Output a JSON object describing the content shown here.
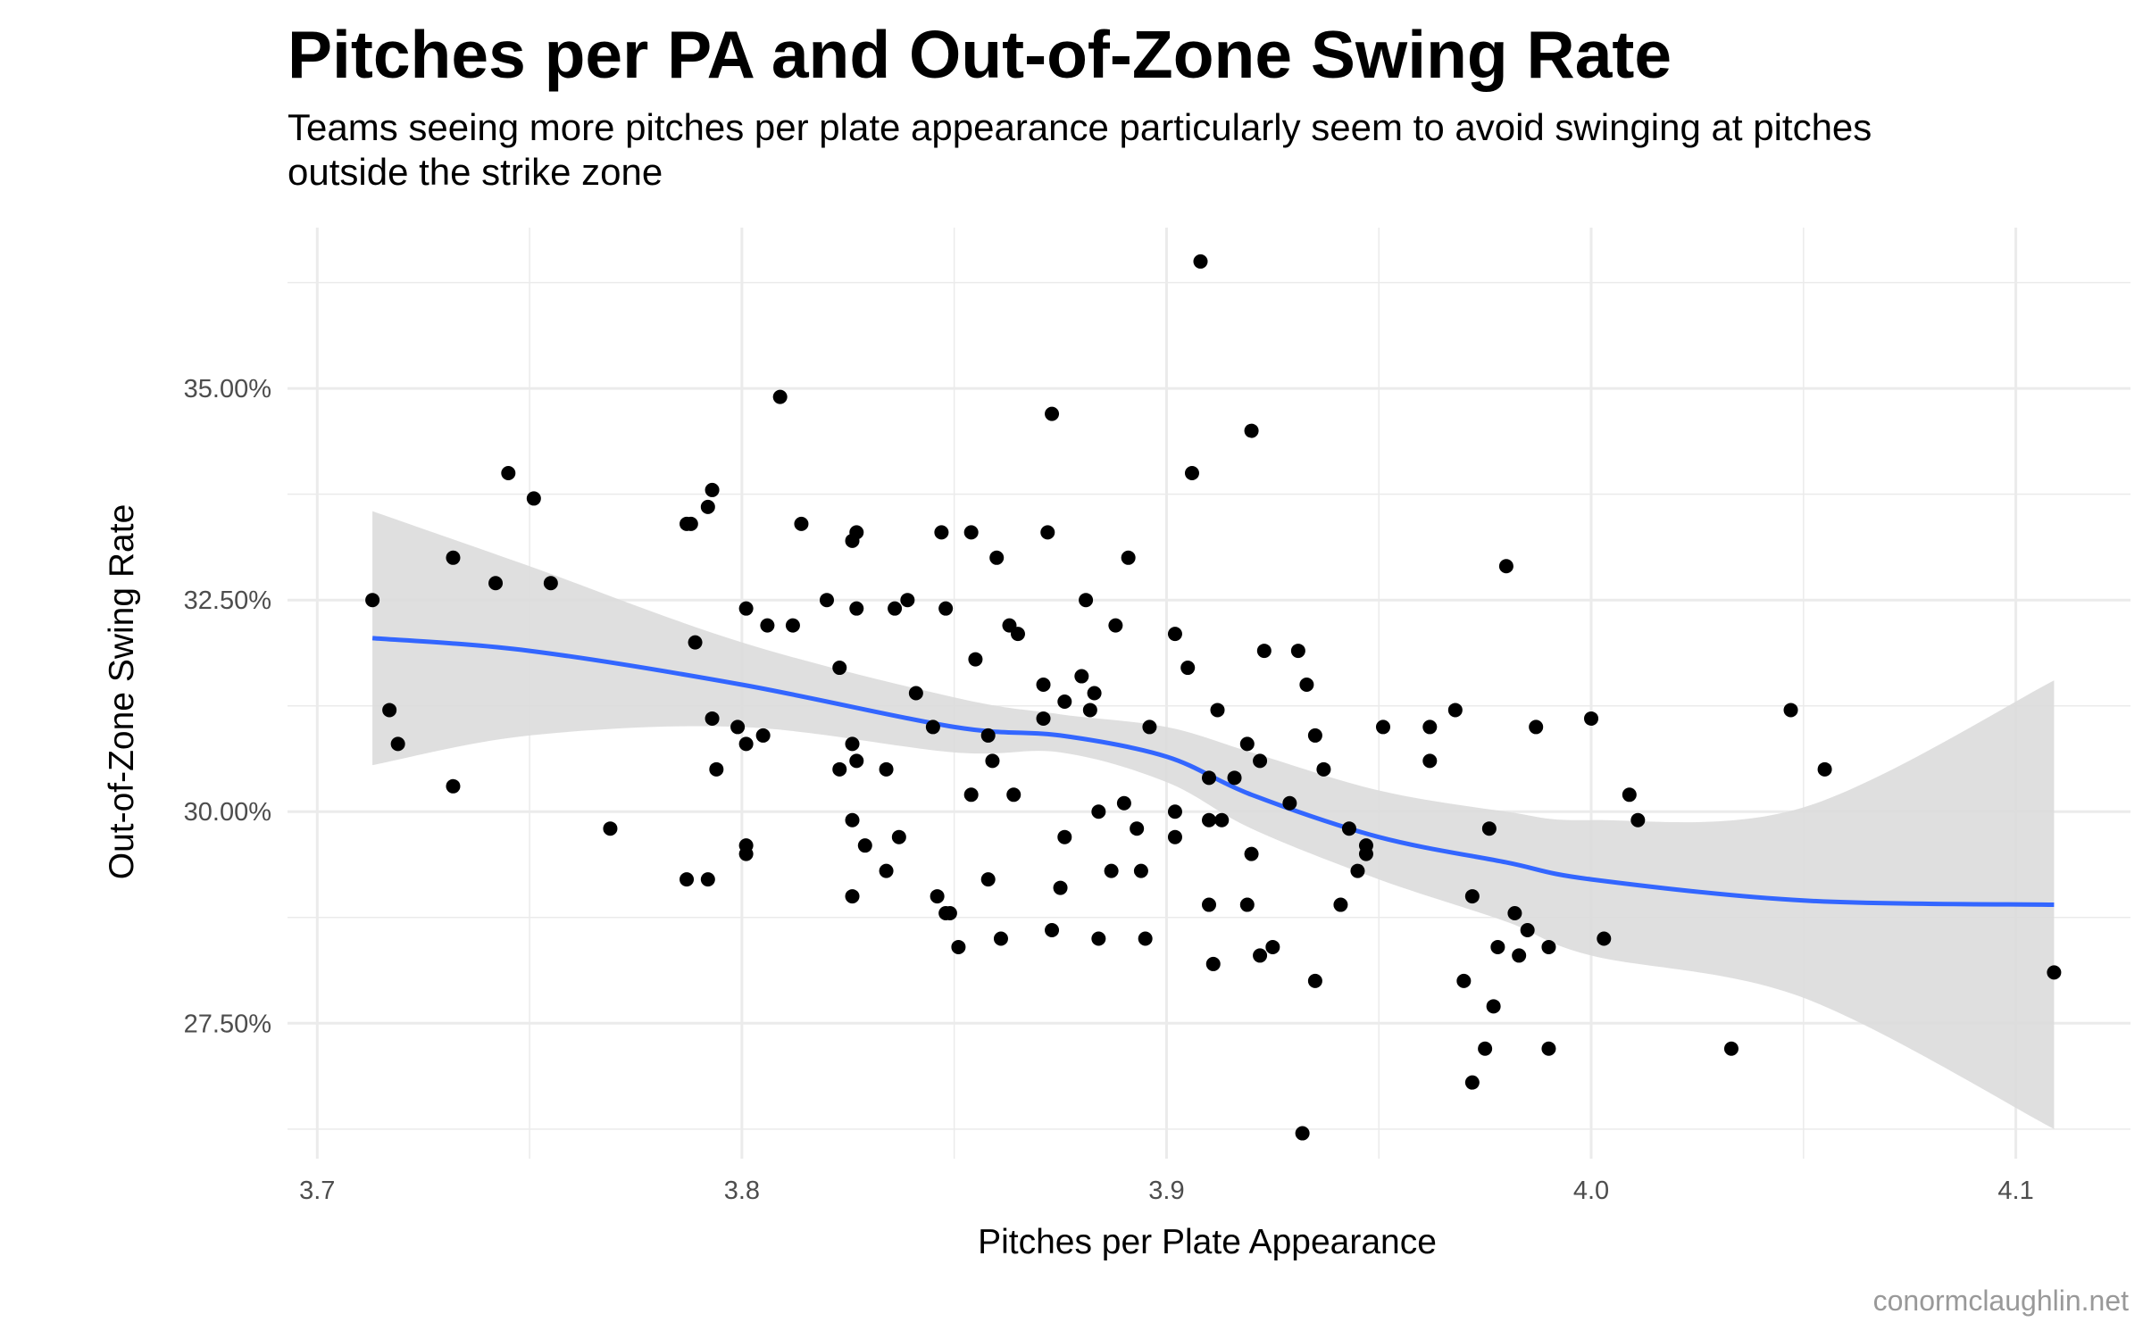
{
  "title": "Pitches per PA and Out-of-Zone Swing Rate",
  "subtitle": "Teams seeing more pitches per plate appearance particularly seem to avoid swinging at pitches outside the strike zone",
  "caption": "conormclaughlin.net",
  "colors": {
    "points": "#000000",
    "smooth_line": "#3366ff",
    "confidence_band": "#dcdcdc",
    "grid": "#ebebeb",
    "tick_text": "#4d4d4d",
    "caption_text": "#999999"
  },
  "chart_data": {
    "type": "scatter",
    "xlabel": "Pitches per Plate Appearance",
    "ylabel": "Out-of-Zone Swing Rate",
    "xlim": [
      3.693,
      4.127
    ],
    "ylim": [
      25.9,
      36.9
    ],
    "x_ticks": [
      3.7,
      3.8,
      3.9,
      4.0,
      4.1
    ],
    "x_tick_labels": [
      "3.7",
      "3.8",
      "3.9",
      "4.0",
      "4.1"
    ],
    "y_ticks": [
      27.5,
      30.0,
      32.5,
      35.0
    ],
    "y_tick_labels": [
      "27.50%",
      "30.00%",
      "32.50%",
      "35.00%"
    ],
    "grid": true,
    "legend": "none",
    "points": {
      "x": [
        3.908,
        3.809,
        3.873,
        3.92,
        3.745,
        3.906,
        3.751,
        3.793,
        3.787,
        3.788,
        3.792,
        3.814,
        3.827,
        3.826,
        3.847,
        3.854,
        3.872,
        3.732,
        3.86,
        3.98,
        3.891,
        3.742,
        3.755,
        3.713,
        3.82,
        3.881,
        3.801,
        3.836,
        3.827,
        3.839,
        3.848,
        3.806,
        3.812,
        3.863,
        3.888,
        3.865,
        3.902,
        3.789,
        3.855,
        3.923,
        3.931,
        3.905,
        3.823,
        3.88,
        3.871,
        3.883,
        3.933,
        3.841,
        3.717,
        3.882,
        3.876,
        3.912,
        3.968,
        3.793,
        3.799,
        3.871,
        3.987,
        3.805,
        3.951,
        3.962,
        4.0,
        3.845,
        3.858,
        3.719,
        3.801,
        3.896,
        4.047,
        3.919,
        3.826,
        3.922,
        3.859,
        3.827,
        3.794,
        3.823,
        3.935,
        3.962,
        3.834,
        3.937,
        3.916,
        3.91,
        3.732,
        3.854,
        3.864,
        4.055,
        3.902,
        3.89,
        4.009,
        3.884,
        3.826,
        3.976,
        4.011,
        3.929,
        3.769,
        3.893,
        3.943,
        3.876,
        3.902,
        3.913,
        3.91,
        3.837,
        3.829,
        3.801,
        3.92,
        3.947,
        3.801,
        3.947,
        3.887,
        3.894,
        3.875,
        3.945,
        3.834,
        3.787,
        3.792,
        3.858,
        3.846,
        3.972,
        3.826,
        3.941,
        3.919,
        3.91,
        3.848,
        3.849,
        3.982,
        3.873,
        3.884,
        3.985,
        3.895,
        4.003,
        3.861,
        3.925,
        3.851,
        3.978,
        3.99,
        3.983,
        3.911,
        3.922,
        3.97,
        4.109,
        3.935,
        3.977,
        3.975,
        3.99,
        4.033,
        3.972,
        3.932
      ],
      "y": [
        36.5,
        34.9,
        34.7,
        34.5,
        34.0,
        34.0,
        33.7,
        33.8,
        33.4,
        33.4,
        33.6,
        33.4,
        33.3,
        33.2,
        33.3,
        33.3,
        33.3,
        33.0,
        33.0,
        32.9,
        33.0,
        32.7,
        32.7,
        32.5,
        32.5,
        32.5,
        32.4,
        32.4,
        32.4,
        32.5,
        32.4,
        32.2,
        32.2,
        32.2,
        32.2,
        32.1,
        32.1,
        32.0,
        31.8,
        31.9,
        31.9,
        31.7,
        31.7,
        31.6,
        31.5,
        31.4,
        31.5,
        31.4,
        31.2,
        31.2,
        31.3,
        31.2,
        31.2,
        31.1,
        31.0,
        31.1,
        31.0,
        30.9,
        31.0,
        31.0,
        31.1,
        31.0,
        30.9,
        30.8,
        30.8,
        31.0,
        31.2,
        30.8,
        30.8,
        30.6,
        30.6,
        30.6,
        30.5,
        30.5,
        30.9,
        30.6,
        30.5,
        30.5,
        30.4,
        30.4,
        30.3,
        30.2,
        30.2,
        30.5,
        30.0,
        30.1,
        30.2,
        30.0,
        29.9,
        29.8,
        29.9,
        30.1,
        29.8,
        29.8,
        29.8,
        29.7,
        29.7,
        29.9,
        29.9,
        29.7,
        29.6,
        29.6,
        29.5,
        29.6,
        29.5,
        29.5,
        29.3,
        29.3,
        29.1,
        29.3,
        29.3,
        29.2,
        29.2,
        29.2,
        29.0,
        29.0,
        29.0,
        28.9,
        28.9,
        28.9,
        28.8,
        28.8,
        28.8,
        28.6,
        28.5,
        28.6,
        28.5,
        28.5,
        28.5,
        28.4,
        28.4,
        28.4,
        28.4,
        28.3,
        28.2,
        28.3,
        28.0,
        28.1,
        28.0,
        27.7,
        27.2,
        27.2,
        27.2,
        26.8,
        26.2
      ]
    },
    "smooth_line": {
      "x": [
        3.713,
        3.75,
        3.8,
        3.85,
        3.875,
        3.9,
        3.92,
        3.95,
        3.98,
        4.0,
        4.05,
        4.109
      ],
      "y": [
        32.05,
        31.9,
        31.5,
        31.0,
        30.9,
        30.65,
        30.2,
        29.7,
        29.4,
        29.2,
        28.95,
        28.9
      ],
      "ci_low": [
        30.55,
        30.9,
        31.0,
        30.7,
        30.7,
        30.35,
        29.8,
        29.2,
        28.7,
        28.3,
        27.8,
        26.25
      ],
      "ci_high": [
        33.55,
        32.9,
        32.0,
        31.35,
        31.15,
        31.0,
        30.7,
        30.25,
        30.0,
        29.9,
        30.05,
        31.55
      ]
    }
  }
}
